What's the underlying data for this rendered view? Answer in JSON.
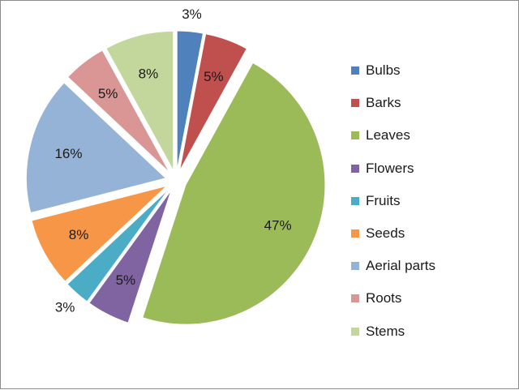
{
  "chart_data": {
    "type": "pie",
    "title": "",
    "legend_position": "right",
    "slices": [
      {
        "label": "Bulbs",
        "value": 3,
        "value_label": "3%",
        "color": "#4f81bd"
      },
      {
        "label": "Barks",
        "value": 5,
        "value_label": "5%",
        "color": "#c0504d"
      },
      {
        "label": "Leaves",
        "value": 47,
        "value_label": "47%",
        "color": "#9bbb59"
      },
      {
        "label": "Flowers",
        "value": 5,
        "value_label": "5%",
        "color": "#8064a2"
      },
      {
        "label": "Fruits",
        "value": 3,
        "value_label": "3%",
        "color": "#4bacc6"
      },
      {
        "label": "Seeds",
        "value": 8,
        "value_label": "8%",
        "color": "#f79646"
      },
      {
        "label": "Aerial parts",
        "value": 16,
        "value_label": "16%",
        "color": "#95b3d7"
      },
      {
        "label": "Roots",
        "value": 5,
        "value_label": "5%",
        "color": "#d99694"
      },
      {
        "label": "Stems",
        "value": 8,
        "value_label": "8%",
        "color": "#c3d69b"
      }
    ]
  }
}
